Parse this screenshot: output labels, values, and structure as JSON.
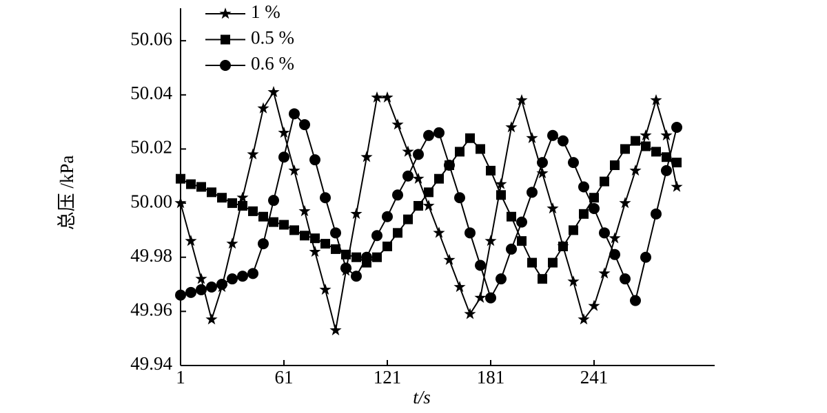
{
  "chart_data": {
    "type": "line",
    "x_label": "t/s",
    "y_label": "总压 /kPa",
    "xlim": [
      1,
      311
    ],
    "ylim": [
      49.94,
      50.072
    ],
    "xticks": [
      1,
      61,
      121,
      181,
      241
    ],
    "yticks": [
      49.94,
      49.96,
      49.98,
      {
        "value": 50,
        "label": "50.00"
      },
      50.02,
      50.04,
      50.06
    ],
    "legend": "top-left",
    "x": [
      1,
      7,
      13,
      19,
      25,
      31,
      37,
      43,
      49,
      55,
      61,
      67,
      73,
      79,
      85,
      91,
      97,
      103,
      109,
      115,
      121,
      127,
      133,
      139,
      145,
      151,
      157,
      163,
      169,
      175,
      181,
      187,
      193,
      199,
      205,
      211,
      217,
      223,
      229,
      235,
      241,
      247,
      253,
      259,
      265,
      271,
      277,
      283,
      289
    ],
    "series": [
      {
        "name": "1 %",
        "color": "#000000",
        "marker": "star",
        "values": [
          50.0,
          49.986,
          49.972,
          49.957,
          49.969,
          49.985,
          50.002,
          50.018,
          50.035,
          50.041,
          50.026,
          50.012,
          49.997,
          49.982,
          49.968,
          49.953,
          49.975,
          49.996,
          50.017,
          50.039,
          50.039,
          50.029,
          50.019,
          50.009,
          49.999,
          49.989,
          49.979,
          49.969,
          49.959,
          49.965,
          49.986,
          50.007,
          50.028,
          50.038,
          50.024,
          50.011,
          49.998,
          49.984,
          49.971,
          49.957,
          49.962,
          49.974,
          49.987,
          50.0,
          50.012,
          50.025,
          50.038,
          50.025,
          50.006
        ]
      },
      {
        "name": "0.5 %",
        "color": "#000000",
        "marker": "square",
        "values": [
          50.009,
          50.007,
          50.006,
          50.004,
          50.002,
          50.0,
          49.999,
          49.997,
          49.995,
          49.993,
          49.992,
          49.99,
          49.988,
          49.987,
          49.985,
          49.983,
          49.981,
          49.98,
          49.978,
          49.98,
          49.984,
          49.989,
          49.994,
          49.999,
          50.004,
          50.009,
          50.014,
          50.019,
          50.024,
          50.02,
          50.012,
          50.003,
          49.995,
          49.986,
          49.978,
          49.972,
          49.978,
          49.984,
          49.99,
          49.996,
          50.002,
          50.008,
          50.014,
          50.02,
          50.023,
          50.021,
          50.019,
          50.017,
          50.015
        ]
      },
      {
        "name": "0.6 %",
        "color": "#000000",
        "marker": "circle",
        "values": [
          49.966,
          49.967,
          49.968,
          49.969,
          49.97,
          49.972,
          49.973,
          49.974,
          49.985,
          50.001,
          50.017,
          50.033,
          50.029,
          50.016,
          50.002,
          49.989,
          49.976,
          49.973,
          49.98,
          49.988,
          49.995,
          50.003,
          50.01,
          50.018,
          50.025,
          50.026,
          50.014,
          50.002,
          49.989,
          49.977,
          49.965,
          49.972,
          49.983,
          49.993,
          50.004,
          50.015,
          50.025,
          50.023,
          50.015,
          50.006,
          49.998,
          49.989,
          49.981,
          49.972,
          49.964,
          49.98,
          49.996,
          50.012,
          50.028
        ]
      }
    ]
  }
}
